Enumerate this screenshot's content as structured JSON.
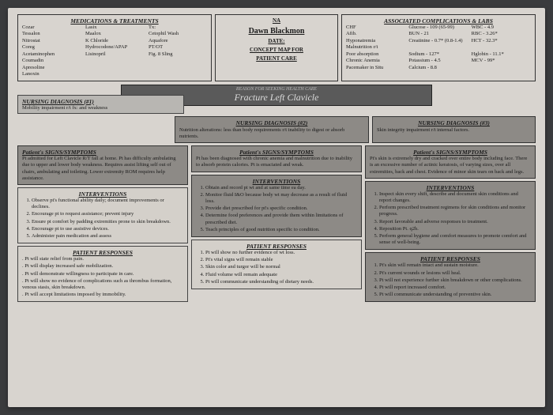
{
  "header": {
    "meds_title": "MEDICATIONS & TREATMENTS",
    "meds_col1": [
      "Cozar",
      "Tessalon",
      "Nitrostat",
      "Coreg",
      "Acetaminophen",
      "Coumadin",
      "Apresoline",
      "Lanoxin"
    ],
    "meds_col2": [
      "Lasix",
      "Maalox",
      "K Chloride",
      "Hydrocodone/APAP",
      "Lisinopril"
    ],
    "meds_col3": [
      "Tx:",
      "Cetophil Wash",
      "Aquafore",
      "PT/OT",
      "Fig. 8 Sling"
    ],
    "name_label": "NA",
    "patient_name": "Dawn Blackmon",
    "date_label": "DATE:",
    "concept": "CONCEPT MAP FOR",
    "patient_care": "PATIENT CARE",
    "labs_title": "ASSOCIATED COMPLICATIONS & LABS",
    "labs_left": [
      "CHF",
      "Afib.",
      "Hyponatremia",
      "Malnutrition r/t",
      "Poor absorption",
      "Chronic Anemia",
      "Pacemaker in Situ"
    ],
    "labs_mid": [
      "Glucose - 109 (65-99)",
      "BUN - 21",
      "Creatinine - 0.7* (0.8-1.4)",
      "",
      "Sodium - 127*",
      "Potassium - 4.5",
      "Calcium - 8.8"
    ],
    "labs_right": [
      "WBC - 4.9",
      "RBC - 3.26*",
      "HCT - 32.3*",
      "",
      "Hglobin - 11.1*",
      "MCV - 99*",
      ""
    ]
  },
  "banner": {
    "small": "REASON FOR SEEKING HEALTH CARE",
    "main": "Fracture Left Clavicle"
  },
  "dx1": {
    "title": "NURSING DIAGNOSIS (#1)",
    "text": "Mobility impairment r/t fx: and weakness"
  },
  "dx2": {
    "title": "NURSING DIAGNOSIS (#2)",
    "text": "Nutrition alterations: less than body requirements r/t inability to digest or absorb nutrients."
  },
  "dx3": {
    "title": "NURSING DIAGNOSIS (#3)",
    "text": "Skin integrity impairment r/t internal factors."
  },
  "col1": {
    "ss_title": "Patient's SIGNS/SYMPTOMS",
    "ss": "Pt admitted for Left Clavicle R/T fall at home. Pt has difficulty ambulating due to upper and lower body weakness. Requires assist lifting self out of chairs, ambulating and toileting. Lower extremity ROM requires help assistance.",
    "int_title": "INTERVENTIONS",
    "int": [
      "Observe pt's functional ability daily; document improvements or declines.",
      "Encourage pt to request assistance; prevent injury",
      "Ensure pt comfort by padding extremities prone to skin breakdown.",
      "Encourage pt to use assistive devices.",
      "Administer pain medication and assess"
    ],
    "pr_title": "PATIENT RESPONSES",
    "pr": [
      "Pt will state relief from pain.",
      "Pt will display increased safe mobilization.",
      "Pt will demonstrate willingness to participate in care.",
      "Pt will show no evidence of complications such as thrombus formation, venous stasis, skin breakdown.",
      "Pt will accept limitations imposed by immobility."
    ]
  },
  "col2": {
    "ss_title": "Patient's SIGNS/SYMPTOMS",
    "ss": "Pt has been diagnosed with chronic anemia and malnutrition due to inability to absorb protein calories. Pt is emaciated and weak.",
    "int_title": "INTERVENTIONS",
    "int": [
      "Obtain and record pt wt and at same time ea day.",
      "Monitor fluid I&O because body wt may decrease as a result of fluid loss.",
      "Provide diet prescribed for pt's specific condition.",
      "Determine food preferences and provide them within limitations of prescribed diet.",
      "Teach principles of good nutrition specific to condition."
    ],
    "pr_title": "PATIENT RESPONSES",
    "pr": [
      "Pt will show no further evidence of wt loss.",
      "Pt's vital signs will remain stable",
      "Skin color and turgor will be normal",
      "Fluid volume will remain adequate",
      "Pt will communicate understanding of dietary needs."
    ]
  },
  "col3": {
    "ss_title": "Patient's SIGNS/SYMPTOMS",
    "ss": "Pt's skin is extremely dry and cracked over entire body including face. There is an excessive number of actinic keratosis, of varying sizes, over all extremities, back and chest. Evidence of minor skin tears on back and legs.",
    "int_title": "INTERVENTIONS",
    "int": [
      "Inspect skin every shift, describe and document skin conditions and report changes.",
      "Perform prescribed treatment regimens for skin conditions and monitor progress.",
      "Report favorable and adverse responses to treatment.",
      "Reposition Pt. q2h.",
      "Perform general hygiene and comfort measures to promote comfort and sense of well-being."
    ],
    "pr_title": "PATIENT RESPONSES",
    "pr": [
      "Pt's skin will remain intact and sustain moisture.",
      "Pt's current wounds or lesions will heal.",
      "Pt will not experience further skin breakdown or other complications.",
      "Pt will report increased comfort.",
      "Pt will communicate understanding of preventive skin."
    ]
  }
}
